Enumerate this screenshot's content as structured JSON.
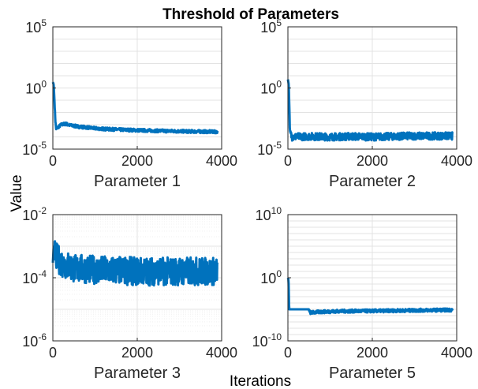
{
  "figure": {
    "title": "Threshold of Parameters",
    "xlabel": "Iterations",
    "ylabel": "Value"
  },
  "style": {
    "line_color": "#0072BD",
    "axis_color": "#262626",
    "grid_color": "#e3e3e3",
    "minor_grid_color": "#f0f0f0"
  },
  "chart_data": [
    {
      "type": "line",
      "title": "Parameter 1",
      "xlabel": "Parameter 1",
      "xlim": [
        0,
        4000
      ],
      "xticks": [
        0,
        2000,
        4000
      ],
      "yscale": "log",
      "ylim": [
        1e-05,
        100000.0
      ],
      "yticks": [
        {
          "base": "10",
          "exp": "5",
          "value": 100000.0
        },
        {
          "base": "10",
          "exp": "0",
          "value": 1
        },
        {
          "base": "10",
          "exp": "-5",
          "value": 1e-05
        }
      ],
      "grid": true,
      "series": [
        {
          "x": [
            0,
            20,
            60,
            80,
            120,
            200,
            300,
            400,
            600,
            800,
            1000,
            1200,
            1500,
            1800,
            2000,
            2400,
            2800,
            3200,
            3600,
            3900
          ],
          "y": [
            3,
            2,
            0.002,
            0.0004,
            0.0006,
            0.001,
            0.0012,
            0.0009,
            0.0007,
            0.0006,
            0.0005,
            0.00045,
            0.0004,
            0.00037,
            0.00035,
            0.00032,
            0.0003,
            0.00028,
            0.00027,
            0.00026
          ],
          "noise": 0.25
        }
      ]
    },
    {
      "type": "line",
      "title": "Parameter 2",
      "xlabel": "Parameter 2",
      "xlim": [
        0,
        4000
      ],
      "xticks": [
        0,
        2000,
        4000
      ],
      "yscale": "log",
      "ylim": [
        1e-05,
        100000.0
      ],
      "yticks": [
        {
          "base": "10",
          "exp": "5",
          "value": 100000.0
        },
        {
          "base": "10",
          "exp": "0",
          "value": 1
        },
        {
          "base": "10",
          "exp": "-5",
          "value": 1e-05
        }
      ],
      "grid": true,
      "series": [
        {
          "x": [
            0,
            20,
            50,
            100,
            500,
            1000,
            1500,
            2000,
            2500,
            3000,
            3500,
            3900
          ],
          "y": [
            5,
            2,
            0.0002,
            0.0001,
            0.00011,
            0.0001,
            0.00011,
            0.0001,
            0.00011,
            0.00012,
            0.00012,
            0.00012
          ],
          "noise": 0.6
        }
      ]
    },
    {
      "type": "line",
      "title": "Parameter 3",
      "xlabel": "Parameter 3",
      "xlim": [
        0,
        4000
      ],
      "xticks": [
        0,
        2000,
        4000
      ],
      "yscale": "log",
      "ylim": [
        1e-06,
        0.01
      ],
      "yticks": [
        {
          "base": "10",
          "exp": "-2",
          "value": 0.01
        },
        {
          "base": "10",
          "exp": "-4",
          "value": 0.0001
        },
        {
          "base": "10",
          "exp": "-6",
          "value": 1e-06
        }
      ],
      "grid": true,
      "series": [
        {
          "x": [
            0,
            20,
            60,
            200,
            500,
            1000,
            1500,
            2000,
            2500,
            3000,
            3500,
            3900
          ],
          "y": [
            0.0003,
            0.001,
            0.0005,
            0.0003,
            0.0002,
            0.00018,
            0.00017,
            0.00016,
            0.00016,
            0.00016,
            0.00016,
            0.00016
          ],
          "noise": 0.9
        }
      ]
    },
    {
      "type": "line",
      "title": "Parameter 5",
      "xlabel": "Parameter 5",
      "xlim": [
        0,
        4000
      ],
      "xticks": [
        0,
        2000,
        4000
      ],
      "yscale": "log",
      "ylim": [
        1e-10,
        10000000000.0
      ],
      "yticks": [
        {
          "base": "10",
          "exp": "10",
          "value": 10000000000.0
        },
        {
          "base": "10",
          "exp": "0",
          "value": 1
        },
        {
          "base": "10",
          "exp": "-10",
          "value": 1e-10
        }
      ],
      "grid": true,
      "series": [
        {
          "x": [
            0,
            15,
            30,
            500,
            520,
            800,
            1200,
            2000,
            2800,
            3500,
            3900
          ],
          "y": [
            1,
            0.5,
            1e-05,
            1e-05,
            3e-06,
            4e-06,
            5e-06,
            5.5e-06,
            6.5e-06,
            7.5e-06,
            8e-06
          ],
          "noise": 0.5,
          "noise_from_x": 500
        }
      ]
    }
  ]
}
